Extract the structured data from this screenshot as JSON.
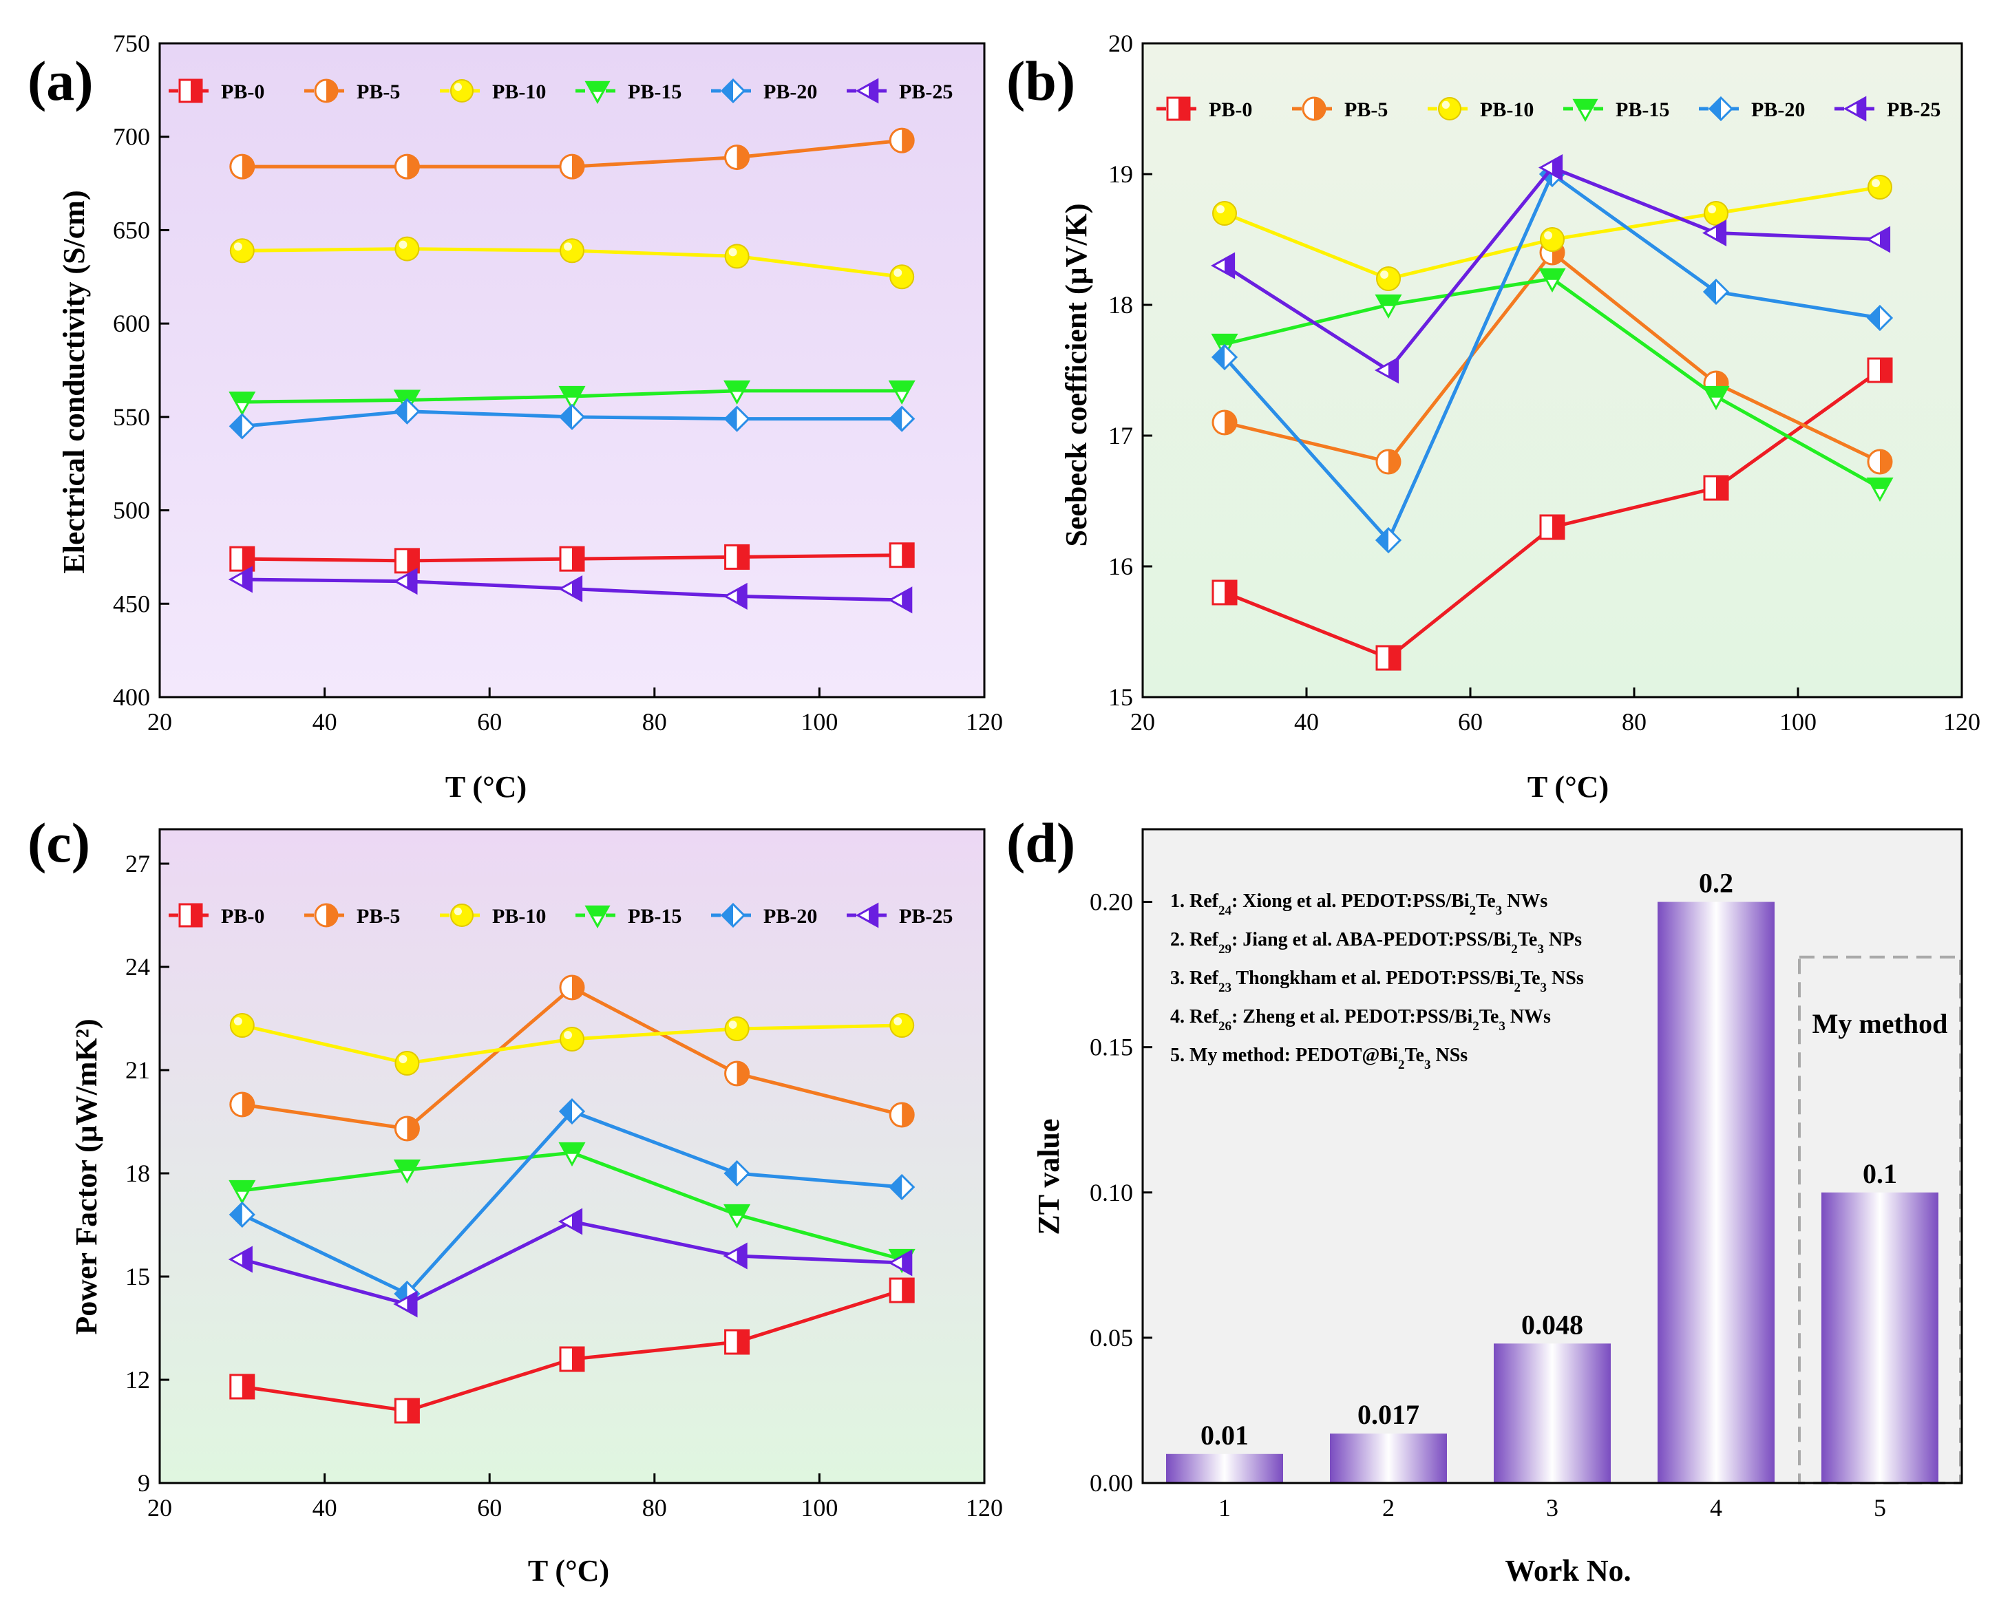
{
  "colors": {
    "PB-0": "#ee1c24",
    "PB-5": "#f47a20",
    "PB-10": "#fff200",
    "PB-15": "#22ee22",
    "PB-20": "#2a8ee8",
    "PB-25": "#6a1fe0",
    "bar_dark": "#7a4cc0",
    "bar_light": "#ffffff"
  },
  "chart_data": [
    {
      "type": "line",
      "panel": "(a)",
      "xlabel": "T (°C)",
      "ylabel": "Electrical conductivity (S/cm)",
      "xlim": [
        20,
        120
      ],
      "ylim": [
        400,
        750
      ],
      "xticks": [
        20,
        40,
        60,
        80,
        100,
        120
      ],
      "yticks": [
        400,
        450,
        500,
        550,
        600,
        650,
        700,
        750
      ],
      "x": [
        30,
        50,
        70,
        90,
        110
      ],
      "background": [
        "#e7d6f6",
        "#f3e8fc"
      ],
      "legend_position": "top",
      "series": [
        {
          "name": "PB-0",
          "values": [
            474,
            473,
            474,
            475,
            476
          ]
        },
        {
          "name": "PB-5",
          "values": [
            684,
            684,
            684,
            689,
            698
          ]
        },
        {
          "name": "PB-10",
          "values": [
            639,
            640,
            639,
            636,
            625
          ]
        },
        {
          "name": "PB-15",
          "values": [
            558,
            559,
            561,
            564,
            564
          ]
        },
        {
          "name": "PB-20",
          "values": [
            545,
            553,
            550,
            549,
            549
          ]
        },
        {
          "name": "PB-25",
          "values": [
            463,
            462,
            458,
            454,
            452
          ]
        }
      ]
    },
    {
      "type": "line",
      "panel": "(b)",
      "xlabel": "T (°C)",
      "ylabel": "Seebeck coefficient (μV/K)",
      "xlim": [
        20,
        120
      ],
      "ylim": [
        15,
        20
      ],
      "xticks": [
        20,
        40,
        60,
        80,
        100,
        120
      ],
      "yticks": [
        15,
        16,
        17,
        18,
        19,
        20
      ],
      "x": [
        30,
        50,
        70,
        90,
        110
      ],
      "background": [
        "#eef4e8",
        "#e2f5e2"
      ],
      "legend_position": "top",
      "series": [
        {
          "name": "PB-0",
          "values": [
            15.8,
            15.3,
            16.3,
            16.6,
            17.5
          ]
        },
        {
          "name": "PB-5",
          "values": [
            17.1,
            16.8,
            18.4,
            17.4,
            16.8
          ]
        },
        {
          "name": "PB-10",
          "values": [
            18.7,
            18.2,
            18.5,
            18.7,
            18.9
          ]
        },
        {
          "name": "PB-15",
          "values": [
            17.7,
            18.0,
            18.2,
            17.3,
            16.6
          ]
        },
        {
          "name": "PB-20",
          "values": [
            17.6,
            16.2,
            19.0,
            18.1,
            17.9
          ]
        },
        {
          "name": "PB-25",
          "values": [
            18.3,
            17.5,
            19.05,
            18.55,
            18.5
          ]
        }
      ]
    },
    {
      "type": "line",
      "panel": "(c)",
      "xlabel": "T (°C)",
      "ylabel": "Power Factor (μW/mK²)",
      "xlim": [
        20,
        120
      ],
      "ylim": [
        9,
        28
      ],
      "xticks": [
        20,
        40,
        60,
        80,
        100,
        120
      ],
      "yticks": [
        9,
        12,
        15,
        18,
        21,
        24,
        27
      ],
      "x": [
        30,
        50,
        70,
        90,
        110
      ],
      "background": [
        "#ecd8f4",
        "#e0f6e0"
      ],
      "legend_position": "top",
      "series": [
        {
          "name": "PB-0",
          "values": [
            11.8,
            11.1,
            12.6,
            13.1,
            14.6
          ]
        },
        {
          "name": "PB-5",
          "values": [
            20.0,
            19.3,
            23.4,
            20.9,
            19.7
          ]
        },
        {
          "name": "PB-10",
          "values": [
            22.3,
            21.2,
            21.9,
            22.2,
            22.3
          ]
        },
        {
          "name": "PB-15",
          "values": [
            17.5,
            18.1,
            18.6,
            16.8,
            15.5
          ]
        },
        {
          "name": "PB-20",
          "values": [
            16.8,
            14.5,
            19.8,
            18.0,
            17.6
          ]
        },
        {
          "name": "PB-25",
          "values": [
            15.5,
            14.2,
            16.6,
            15.6,
            15.4
          ]
        }
      ]
    },
    {
      "type": "bar",
      "panel": "(d)",
      "xlabel": "Work No.",
      "ylabel": "ZT value",
      "categories": [
        "1",
        "2",
        "3",
        "4",
        "5"
      ],
      "values": [
        0.01,
        0.017,
        0.048,
        0.2,
        0.1
      ],
      "value_labels": [
        "0.01",
        "0.017",
        "0.048",
        "0.2",
        "0.1"
      ],
      "ylim": [
        0,
        0.225
      ],
      "yticks": [
        0.0,
        0.05,
        0.1,
        0.15,
        0.2
      ],
      "ytick_labels": [
        "0.00",
        "0.05",
        "0.10",
        "0.15",
        "0.20"
      ],
      "background": "#f1f1f1",
      "highlight_label": "My method",
      "highlight_category": "5",
      "references": [
        {
          "pre": "1. Ref",
          "sub": "24",
          "mid": ": Xiong et al. PEDOT:PSS/Bi",
          "sub2": "2",
          "mid2": "Te",
          "sub3": "3",
          "post": " NWs"
        },
        {
          "pre": "2. Ref",
          "sub": "29",
          "mid": ": Jiang et al. ABA-PEDOT:PSS/Bi",
          "sub2": "2",
          "mid2": "Te",
          "sub3": "3",
          "post": " NPs"
        },
        {
          "pre": "3. Ref",
          "sub": "23",
          "mid": " Thongkham et al. PEDOT:PSS/Bi",
          "sub2": "2",
          "mid2": "Te",
          "sub3": "3",
          "post": " NSs"
        },
        {
          "pre": "4. Ref",
          "sub": "26",
          "mid": ": Zheng et al. PEDOT:PSS/Bi",
          "sub2": "2",
          "mid2": "Te",
          "sub3": "3",
          "post": " NWs"
        },
        {
          "pre": "5. My method: PEDOT@Bi",
          "sub": "2",
          "mid": "Te",
          "sub2": "3",
          "mid2": " NSs",
          "sub3": "",
          "post": ""
        }
      ]
    }
  ]
}
